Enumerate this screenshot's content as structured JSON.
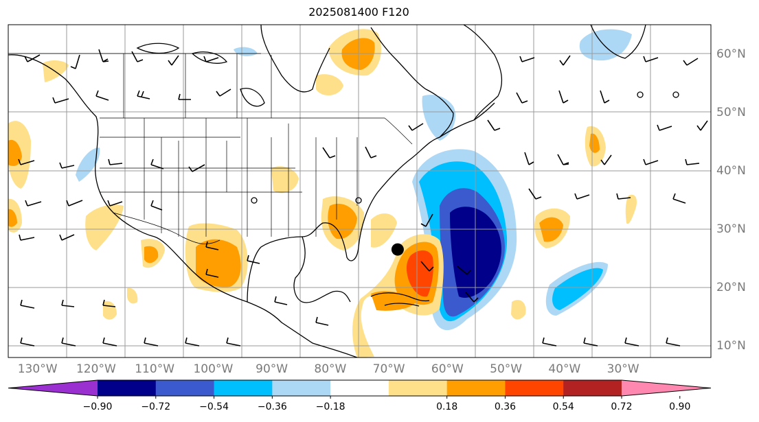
{
  "title": "2025081400 F120",
  "lon_labels": [
    "130°W",
    "120°W",
    "110°W",
    "100°W",
    "90°W",
    "80°W",
    "70°W",
    "60°W",
    "50°W",
    "40°W",
    "30°W"
  ],
  "lat_labels": [
    "60°N",
    "50°N",
    "40°N",
    "30°N",
    "20°N",
    "10°N"
  ],
  "colorbar": {
    "ticks": [
      "−0.90",
      "−0.72",
      "−0.54",
      "−0.36",
      "−0.18",
      "0.18",
      "0.36",
      "0.54",
      "0.72",
      "0.90"
    ],
    "colors": [
      "#9b30d0",
      "#00008b",
      "#3a5acd",
      "#00bfff",
      "#add8f5",
      "#ffffff",
      "#ffe08a",
      "#ff9e00",
      "#ff4500",
      "#b22222",
      "#ff88b0"
    ]
  },
  "storm_marker": {
    "lon": -68.5,
    "lat": 26.5
  }
}
